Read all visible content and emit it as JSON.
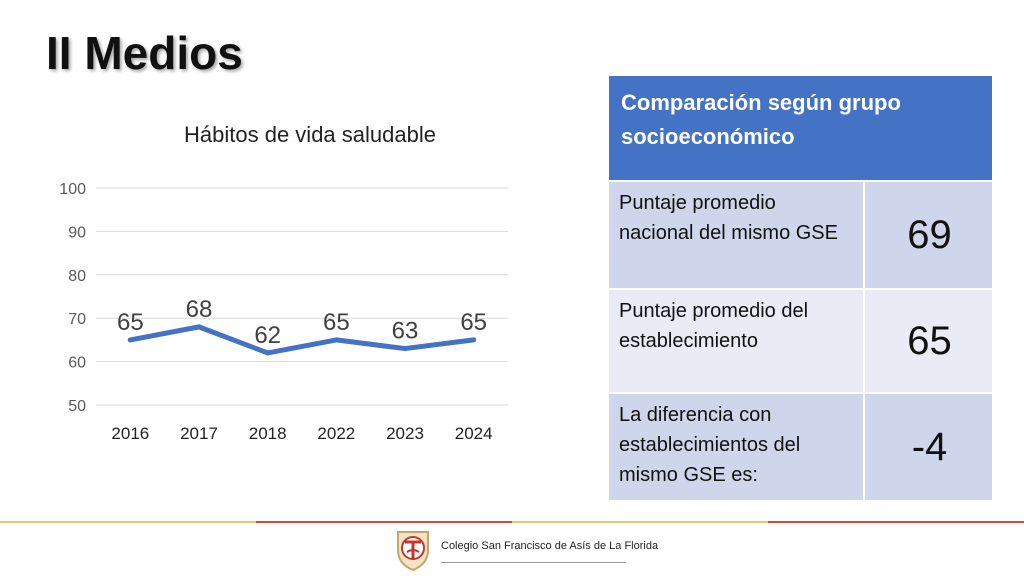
{
  "slide": {
    "title": "II Medios"
  },
  "chart_data": {
    "type": "line",
    "title": "Hábitos de vida saludable",
    "categories": [
      "2016",
      "2017",
      "2018",
      "2022",
      "2023",
      "2024"
    ],
    "series": [
      {
        "values": [
          65,
          68,
          62,
          65,
          63,
          65
        ],
        "color": "#4472c4"
      }
    ],
    "ylim": [
      50,
      100
    ],
    "yticks": [
      "50",
      "60",
      "70",
      "80",
      "90",
      "100"
    ],
    "grid": true,
    "data_labels": true
  },
  "table": {
    "header": "Comparación según grupo socioeconómico",
    "rows": [
      {
        "label": "Puntaje promedio nacional del mismo GSE",
        "value": "69"
      },
      {
        "label": "Puntaje promedio del establecimiento",
        "value": "65"
      },
      {
        "label": "La diferencia con establecimientos del mismo GSE es:",
        "value": "-4"
      }
    ],
    "header_color": "#4472c4",
    "row_colors": [
      "#cfd5ea",
      "#e9ebf5",
      "#cfd5ea"
    ]
  },
  "footer": {
    "school": "Colegio San Francisco de Asís de La Florida"
  }
}
